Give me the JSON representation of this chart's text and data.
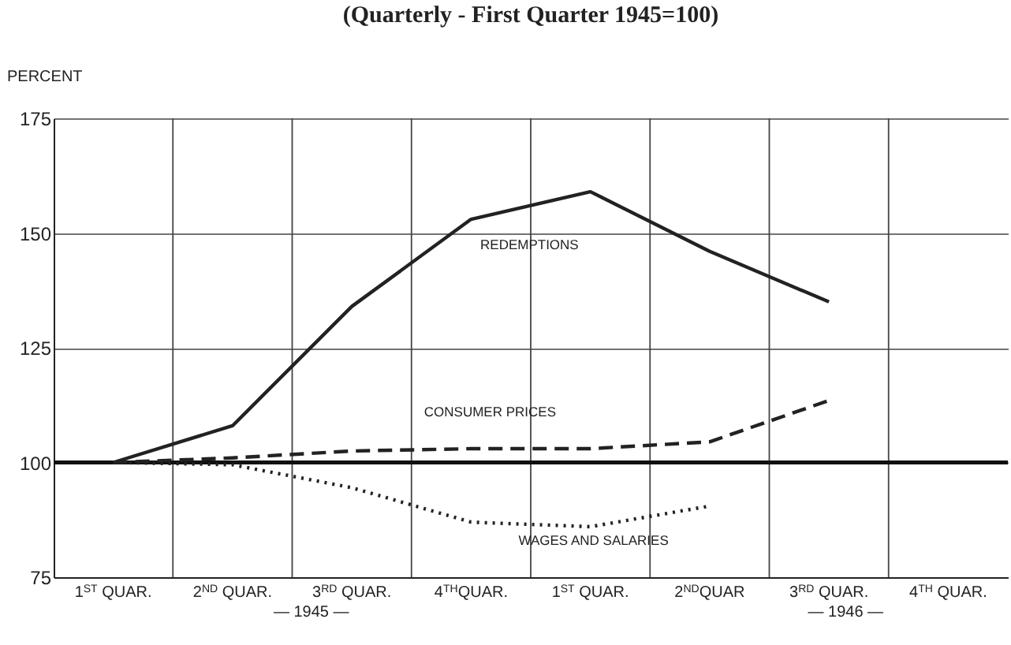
{
  "chart_data": {
    "type": "line",
    "title": "(Quarterly - First Quarter 1945=100)",
    "ylabel": "PERCENT",
    "categories": [
      "1$^{ST}$ QUAR.",
      "2$^{ND}$ QUAR.",
      "3$^{RD}$ QUAR.",
      "4$^{TH}$QUAR.",
      "1$^{ST}$ QUAR.",
      "2$^{ND}$QUAR",
      "3$^{RD}$ QUAR.",
      "4$^{TH}$ QUAR."
    ],
    "series": [
      {
        "name": "REDEMPTIONS",
        "color": "#222222",
        "line_style": "solid",
        "values": [
          100,
          108,
          134,
          153,
          159,
          146,
          135,
          null
        ]
      },
      {
        "name": "CONSUMER PRICES",
        "color": "#222222",
        "line_style": "dashed",
        "values": [
          100,
          101,
          102.5,
          103,
          103,
          104.5,
          113.5,
          null
        ]
      },
      {
        "name": "WAGES AND SALARIES",
        "color": "#222222",
        "line_style": "dotted",
        "values": [
          100,
          99.5,
          94.5,
          87,
          86,
          90.5,
          null,
          null
        ]
      }
    ],
    "ylim": [
      75,
      175
    ],
    "yticks": [
      75,
      100,
      125,
      150,
      175
    ],
    "grid": true,
    "legend": false,
    "marker": "none",
    "ref_lines": [
      {
        "axis": "y",
        "value": 100
      }
    ],
    "annotations": [
      "— 1945 —",
      "— 1946 —"
    ]
  }
}
